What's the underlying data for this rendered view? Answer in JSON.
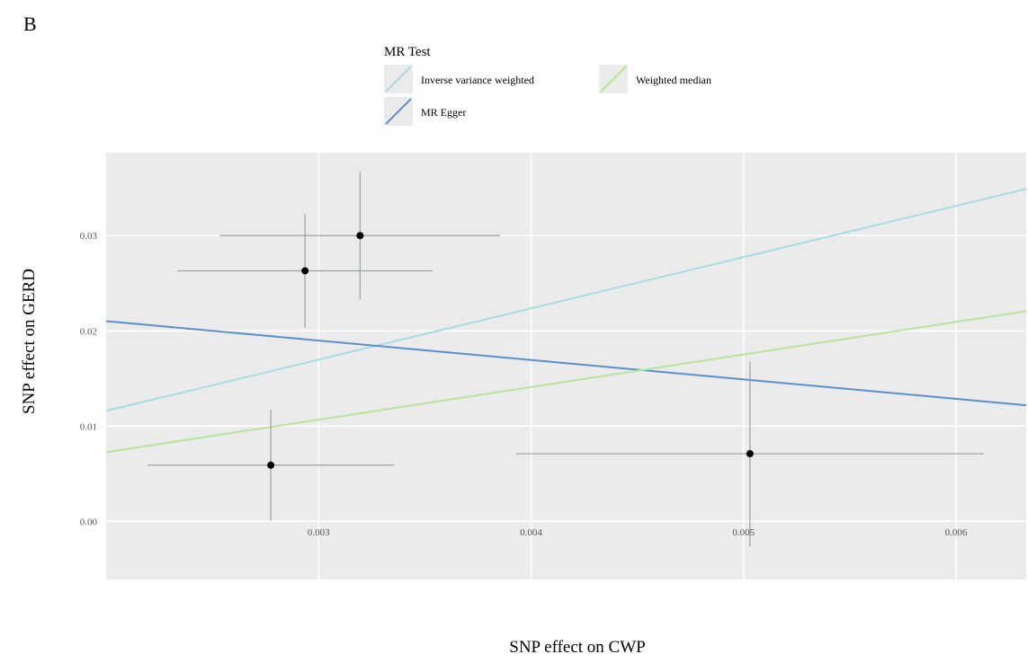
{
  "chart_data": {
    "type": "scatter",
    "panel_label": "B",
    "x_label": "SNP effect on CWP",
    "y_label": "SNP effect on GERD",
    "legend_title": "MR Test",
    "points": {
      "x": [
        0.003195,
        0.002936,
        0.002775,
        0.00503
      ],
      "y": [
        0.03,
        0.0263,
        0.0059,
        0.0071
      ],
      "x_err": [
        0.00066,
        0.0006,
        0.00058,
        0.0011
      ],
      "y_err": [
        0.0067,
        0.006,
        0.0058,
        0.0097
      ],
      "color": "#000000"
    },
    "lines": [
      {
        "name": "Inverse variance weighted",
        "color": "#a9dbe3",
        "intercept": 0.00084,
        "slope": 5.38
      },
      {
        "name": "MR Egger",
        "color": "#5b8fd0",
        "intercept": 0.0251,
        "slope": -2.04
      },
      {
        "name": "Weighted median",
        "color": "#b6e49c",
        "intercept": 0.00042,
        "slope": 3.42
      }
    ],
    "xlim": [
      0.002,
      0.00633
    ],
    "ylim": [
      -0.0061,
      0.0387
    ],
    "xticks": [
      0.003,
      0.004,
      0.005,
      0.006
    ],
    "yticks": [
      {
        "value": 0,
        "label": "0.00"
      },
      0.01,
      0.02,
      0.03
    ],
    "grid": true
  }
}
